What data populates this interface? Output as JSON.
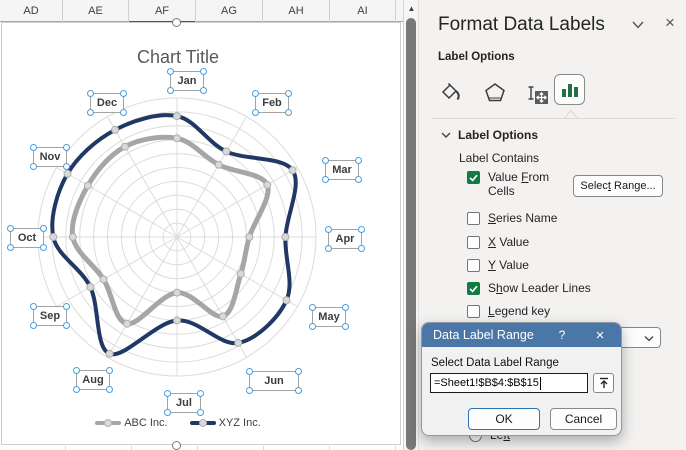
{
  "colors": {
    "accent_green": "#107c41",
    "icon_green": "#217346",
    "dialog_titlebar": "#4a77a8",
    "handle_blue": "#4a9eda",
    "header_select_green": "#1e7145",
    "grid_gray": "#dcdcdc",
    "marker_fill": "#d9d9d9"
  },
  "spreadsheet": {
    "column_headers": [
      "AD",
      "AE",
      "AF",
      "AG",
      "AH",
      "AI"
    ],
    "selected_column": "AF",
    "scrollbar_arrow_icon": "▲"
  },
  "chart_data": {
    "type": "radar",
    "title": "Chart Title",
    "categories": [
      "Jan",
      "Feb",
      "Mar",
      "Apr",
      "May",
      "Jun",
      "Jul",
      "Aug",
      "Sep",
      "Oct",
      "Nov",
      "Dec"
    ],
    "series": [
      {
        "name": "ABC Inc.",
        "color": "#a6a6a6",
        "values": [
          71,
          60,
          75,
          52,
          53,
          66,
          40,
          72,
          61,
          75,
          74,
          75
        ]
      },
      {
        "name": "XYZ Inc.",
        "color": "#1f3864",
        "values": [
          87,
          71,
          96,
          78,
          91,
          88,
          60,
          97,
          72,
          89,
          91,
          89
        ]
      }
    ],
    "rings": 10,
    "max": 100,
    "grid": true,
    "legend_position": "bottom",
    "smoothed_lines": true
  },
  "pane": {
    "title": "Format Data Labels",
    "chevron_icon": "chevron-down",
    "close_icon": "×",
    "context_label": "Label Options",
    "icons": [
      "fill-line-icon",
      "effects-icon",
      "size-properties-icon",
      "label-options-icon"
    ],
    "selected_icon": "label-options-icon",
    "section_title": "Label Options",
    "label_contains": "Label Contains",
    "select_range_button": {
      "pre": "Selec",
      "key": "t",
      "post": " Range..."
    },
    "checkboxes": [
      {
        "pre": "Value ",
        "key": "F",
        "post": "rom",
        "line2": "Cells",
        "checked": true
      },
      {
        "pre": "",
        "key": "S",
        "post": "eries Name",
        "checked": false
      },
      {
        "pre": "",
        "key": "X",
        "post": " Value",
        "checked": false
      },
      {
        "pre": "",
        "key": "Y",
        "post": " Value",
        "checked": false
      },
      {
        "pre": "S",
        "key": "h",
        "post": "ow Leader Lines",
        "checked": true
      },
      {
        "pre": "",
        "key": "L",
        "post": "egend key",
        "checked": false
      }
    ],
    "partially_hidden": {
      "radio_label": {
        "pre": "Le",
        "key": "ft",
        "post": ""
      }
    }
  },
  "dialog": {
    "title": "Data Label Range",
    "help_icon": "?",
    "close_icon": "×",
    "field_label": "Select Data Label Range",
    "field_value": "=Sheet1!$B$4:$B$15",
    "collapse_icon": "collapse-range-icon",
    "ok": "OK",
    "cancel": "Cancel"
  }
}
